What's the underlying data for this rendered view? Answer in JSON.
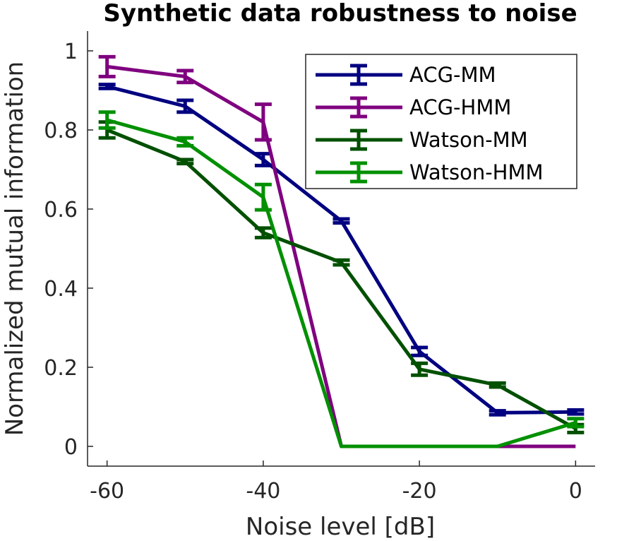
{
  "chart_data": {
    "type": "line",
    "title": "Synthetic data robustness to noise",
    "xlabel": "Noise level [dB]",
    "ylabel": "Normalized mutual information",
    "x": [
      -60,
      -50,
      -40,
      -30,
      -20,
      -10,
      0
    ],
    "xlim": [
      -62.5,
      2.5
    ],
    "ylim": [
      -0.05,
      1.05
    ],
    "xticks": [
      -60,
      -40,
      -20,
      0
    ],
    "xtick_labels": [
      "-60",
      "-40",
      "-20",
      "0"
    ],
    "yticks": [
      0,
      0.2,
      0.4,
      0.6,
      0.8,
      1
    ],
    "ytick_labels": [
      "0",
      "0.2",
      "0.4",
      "0.6",
      "0.8",
      "1"
    ],
    "grid": false,
    "legend_position": "top-right",
    "series": [
      {
        "name": "ACG-MM",
        "color": "#000080",
        "values": [
          0.91,
          0.86,
          0.725,
          0.57,
          0.24,
          0.085,
          0.087
        ],
        "errors": [
          0.005,
          0.015,
          0.015,
          0.005,
          0.01,
          0.005,
          0.005
        ]
      },
      {
        "name": "ACG-HMM",
        "color": "#7f007f",
        "values": [
          0.96,
          0.935,
          0.82,
          0.0,
          0.0,
          0.0,
          0.0
        ],
        "errors": [
          0.025,
          0.015,
          0.045,
          0.0,
          0.0,
          0.0,
          0.0
        ]
      },
      {
        "name": "Watson-MM",
        "color": "#005000",
        "values": [
          0.8,
          0.72,
          0.54,
          0.465,
          0.195,
          0.155,
          0.045
        ],
        "errors": [
          0.02,
          0.005,
          0.012,
          0.006,
          0.015,
          0.005,
          0.01
        ]
      },
      {
        "name": "Watson-HMM",
        "color": "#009000",
        "values": [
          0.825,
          0.77,
          0.63,
          0.0,
          0.0,
          0.0,
          0.06
        ],
        "errors": [
          0.02,
          0.01,
          0.032,
          0.0,
          0.0,
          0.0,
          0.01
        ]
      }
    ]
  }
}
